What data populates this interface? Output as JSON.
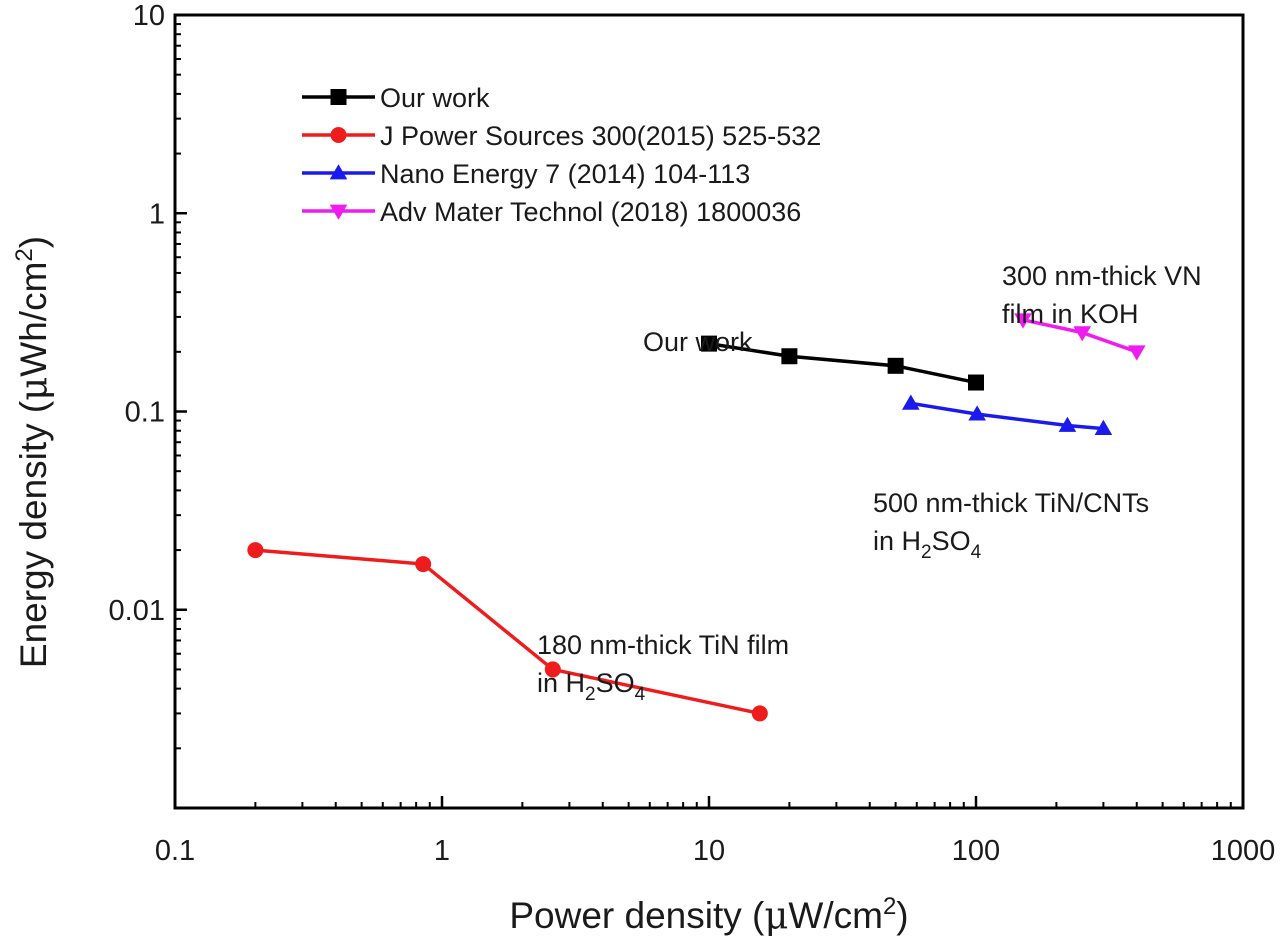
{
  "chart_data": {
    "type": "scatter",
    "title": "",
    "xlabel": "Power density (μW/cm²)",
    "ylabel": "Energy density (μWh/cm²)",
    "xlabel_parts": {
      "pre": "Power density (",
      "mu": "μ",
      "post": "W/cm",
      "sup": "2",
      "close": ")"
    },
    "ylabel_parts": {
      "pre": "Energy density (",
      "mu": "μ",
      "post": "Wh/cm",
      "sup": "2",
      "close": ")"
    },
    "xscale": "log",
    "yscale": "log",
    "xlim": [
      0.1,
      1000
    ],
    "ylim": [
      0.001,
      10
    ],
    "xticks": [
      {
        "value": 0.1,
        "label": "0.1"
      },
      {
        "value": 1,
        "label": "1"
      },
      {
        "value": 10,
        "label": "10"
      },
      {
        "value": 100,
        "label": "100"
      },
      {
        "value": 1000,
        "label": "1000"
      }
    ],
    "yticks": [
      {
        "value": 0.01,
        "label": "0.01"
      },
      {
        "value": 0.1,
        "label": "0.1"
      },
      {
        "value": 1,
        "label": "1"
      },
      {
        "value": 10,
        "label": "10"
      }
    ],
    "grid": false,
    "legend_position": "top-left",
    "series": [
      {
        "name": "Our work",
        "color": "#000000",
        "marker": "square",
        "x": [
          10,
          20,
          50,
          100
        ],
        "y": [
          0.22,
          0.19,
          0.17,
          0.14
        ]
      },
      {
        "name": "J Power Sources 300(2015) 525-532",
        "color": "#ee1c1c",
        "marker": "circle",
        "x": [
          0.2,
          0.85,
          2.6,
          15.5
        ],
        "y": [
          0.02,
          0.017,
          0.005,
          0.003
        ]
      },
      {
        "name": "Nano Energy 7 (2014) 104-113",
        "color": "#1a1aee",
        "marker": "triangle-up",
        "x": [
          57,
          101,
          220,
          300
        ],
        "y": [
          0.11,
          0.097,
          0.085,
          0.082
        ]
      },
      {
        "name": "Adv Mater Technol (2018) 1800036",
        "color": "#ee1cee",
        "marker": "triangle-down",
        "x": [
          150,
          250,
          400
        ],
        "y": [
          0.29,
          0.25,
          0.2
        ]
      }
    ],
    "annotations": [
      {
        "id": "our",
        "lines": [
          {
            "text": "Our work"
          }
        ]
      },
      {
        "id": "vn",
        "lines": [
          {
            "text": "300 nm-thick VN"
          },
          {
            "text": " film in KOH"
          }
        ]
      },
      {
        "id": "cnt",
        "lines": [
          {
            "text": "500 nm-thick TiN/CNTs"
          },
          {
            "pre": "in H",
            "sub1": "2",
            "mid": "SO",
            "sub2": "4"
          }
        ]
      },
      {
        "id": "tin",
        "lines": [
          {
            "text": "180 nm-thick TiN film"
          },
          {
            "pre": "in H",
            "sub1": "2",
            "mid": "SO",
            "sub2": "4"
          }
        ]
      }
    ]
  }
}
